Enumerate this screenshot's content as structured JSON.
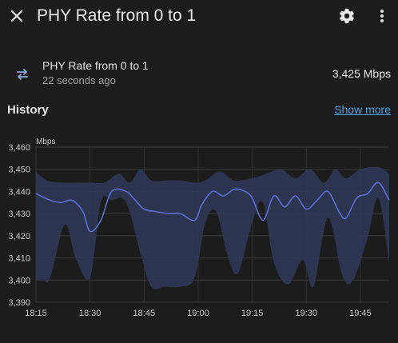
{
  "header": {
    "title": "PHY Rate from 0 to 1",
    "icons": {
      "close": "close-icon",
      "settings": "gear-icon",
      "more": "more-vertical-icon"
    }
  },
  "entity": {
    "name": "PHY Rate from 0 to 1",
    "last_changed": "22 seconds ago",
    "value": "3,425 Mbps",
    "icon": "swap-arrows-icon"
  },
  "history": {
    "title": "History",
    "show_more": "Show more"
  },
  "colors": {
    "background": "#1c1c1c",
    "line": "#5b6fd1",
    "band": "#2f3757",
    "link": "#4fa3e6"
  },
  "chart_data": {
    "type": "area",
    "ylabel": "Mbps",
    "ylim": [
      3390,
      3460
    ],
    "yticks": [
      "3,390",
      "3,400",
      "3,410",
      "3,420",
      "3,430",
      "3,440",
      "3,450",
      "3,460"
    ],
    "xticks": [
      "18:15",
      "18:30",
      "18:45",
      "19:00",
      "19:15",
      "19:30",
      "19:45"
    ],
    "grid": true,
    "series": [
      {
        "role": "mean",
        "x": [
          "18:15",
          "18:19",
          "18:22",
          "18:25",
          "18:28",
          "18:30",
          "18:33",
          "18:36",
          "18:40",
          "18:42",
          "18:45",
          "18:48",
          "18:52",
          "18:55",
          "18:59",
          "19:01",
          "19:04",
          "19:07",
          "19:10",
          "19:13",
          "19:15",
          "19:18",
          "19:21",
          "19:24",
          "19:27",
          "19:30",
          "19:33",
          "19:36",
          "19:39",
          "19:41",
          "19:44",
          "19:47",
          "19:50",
          "19:53"
        ],
        "values": [
          3439,
          3436,
          3435,
          3436,
          3431,
          3422,
          3427,
          3440,
          3440,
          3437,
          3432,
          3431,
          3430,
          3430,
          3427,
          3434,
          3440,
          3438,
          3441,
          3440,
          3437,
          3427,
          3438,
          3433,
          3438,
          3432,
          3436,
          3440,
          3431,
          3428,
          3437,
          3439,
          3444,
          3436
        ]
      },
      {
        "role": "max",
        "x": [
          "18:15",
          "18:18",
          "18:22",
          "18:26",
          "18:30",
          "18:34",
          "18:38",
          "18:41",
          "18:44",
          "18:47",
          "18:51",
          "18:55",
          "18:59",
          "19:02",
          "19:06",
          "19:10",
          "19:15",
          "19:19",
          "19:23",
          "19:27",
          "19:31",
          "19:35",
          "19:38",
          "19:41",
          "19:45",
          "19:50",
          "19:53"
        ],
        "values": [
          3449,
          3445,
          3444,
          3444,
          3444,
          3444,
          3448,
          3444,
          3450,
          3445,
          3445,
          3445,
          3444,
          3445,
          3449,
          3445,
          3446,
          3448,
          3450,
          3446,
          3450,
          3444,
          3450,
          3446,
          3450,
          3451,
          3448
        ]
      },
      {
        "role": "min",
        "x": [
          "18:15",
          "18:17",
          "18:19",
          "18:23",
          "18:26",
          "18:30",
          "18:33",
          "18:36",
          "18:40",
          "18:44",
          "18:47",
          "18:51",
          "18:55",
          "18:59",
          "19:02",
          "19:05",
          "19:08",
          "19:11",
          "19:15",
          "19:18",
          "19:21",
          "19:25",
          "19:29",
          "19:32",
          "19:36",
          "19:40",
          "19:43",
          "19:47",
          "19:50",
          "19:53"
        ],
        "values": [
          3400,
          3400,
          3401,
          3425,
          3410,
          3401,
          3435,
          3436,
          3435,
          3412,
          3397,
          3397,
          3397,
          3401,
          3426,
          3431,
          3412,
          3403,
          3426,
          3435,
          3408,
          3398,
          3409,
          3397,
          3428,
          3402,
          3400,
          3419,
          3437,
          3408
        ]
      }
    ]
  }
}
